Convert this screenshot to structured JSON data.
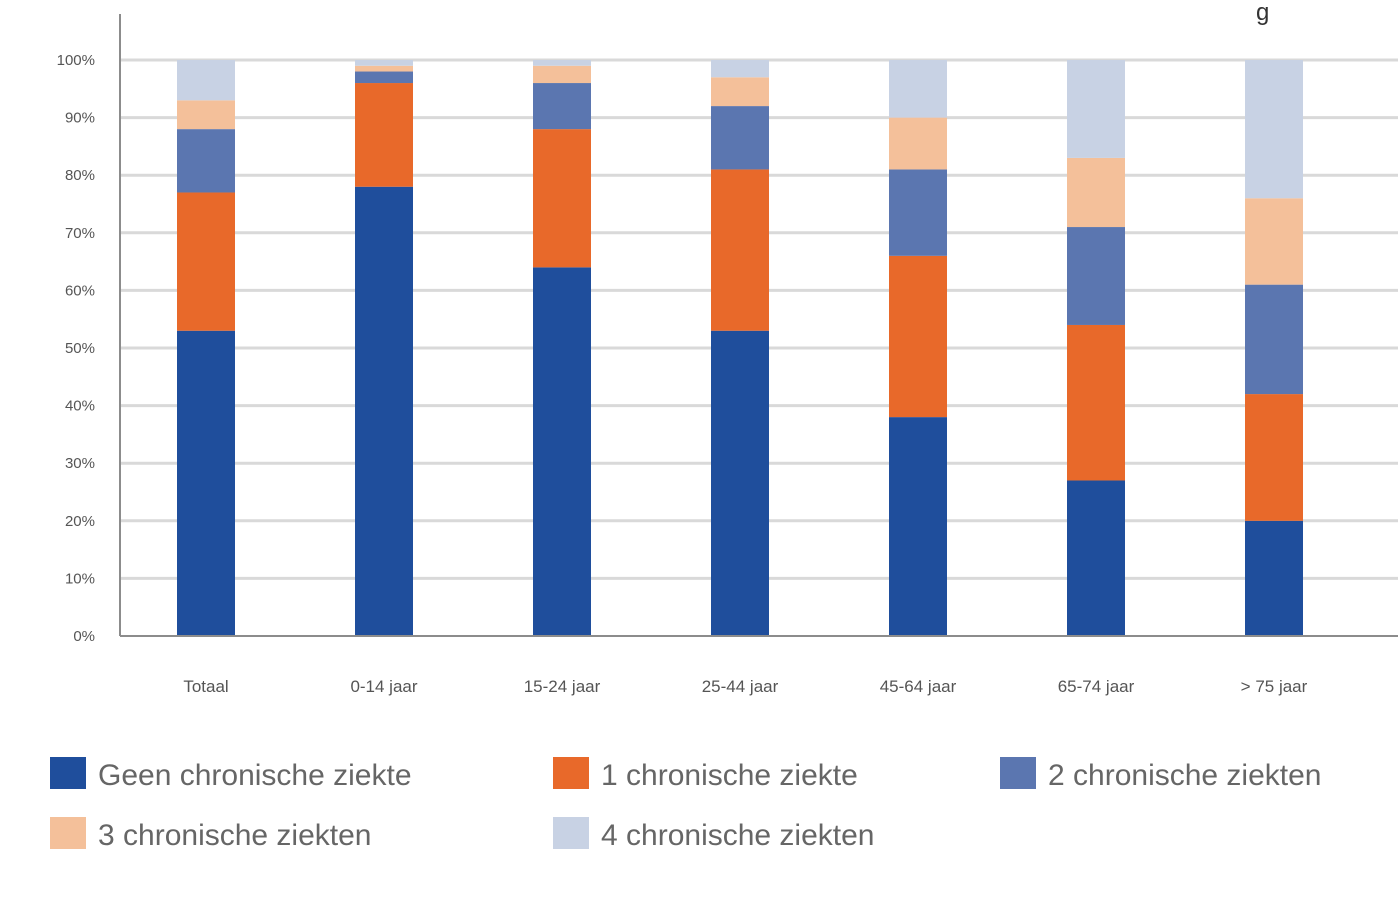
{
  "chart_data": {
    "type": "bar",
    "stacked": true,
    "title": "",
    "xlabel": "",
    "ylabel": "",
    "ylim": [
      0,
      100
    ],
    "y_ticks": [
      "0%",
      "10%",
      "20%",
      "30%",
      "40%",
      "50%",
      "60%",
      "70%",
      "80%",
      "90%",
      "100%"
    ],
    "y_tick_values": [
      0,
      10,
      20,
      30,
      40,
      50,
      60,
      70,
      80,
      90,
      100
    ],
    "grid": true,
    "legend_position": "bottom",
    "categories": [
      "Totaal",
      "0-14 jaar",
      "15-24 jaar",
      "25-44 jaar",
      "45-64 jaar",
      "65-74 jaar",
      "> 75 jaar"
    ],
    "series": [
      {
        "name": "Geen chronische ziekte",
        "color": "#1f4e9c",
        "values": [
          53,
          78,
          64,
          53,
          38,
          27,
          20
        ]
      },
      {
        "name": "1 chronische ziekte",
        "color": "#e8692a",
        "values": [
          24,
          18,
          24,
          28,
          28,
          27,
          22
        ]
      },
      {
        "name": "2 chronische ziekten",
        "color": "#5b76b0",
        "values": [
          11,
          2,
          8,
          11,
          15,
          17,
          19
        ]
      },
      {
        "name": "3 chronische ziekten",
        "color": "#f4c09a",
        "values": [
          5,
          1,
          3,
          5,
          9,
          12,
          15
        ]
      },
      {
        "name": "4 chronische ziekten",
        "color": "#c8d2e4",
        "values": [
          7,
          1,
          1,
          3,
          10,
          17,
          24
        ]
      }
    ]
  },
  "edge_glyph": "g"
}
